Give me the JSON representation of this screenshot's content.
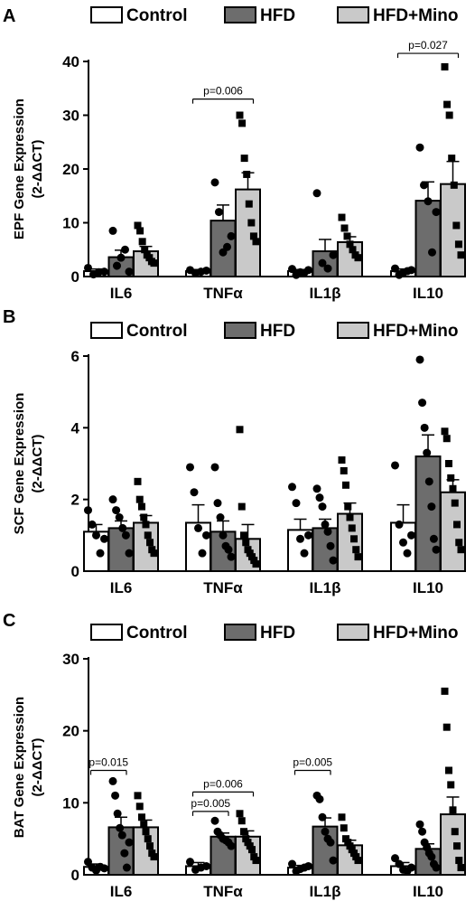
{
  "colors": {
    "Control": "#ffffff",
    "HFD": "#6d6d6d",
    "HFD+Mino": "#c9c9c9",
    "stroke": "#000000"
  },
  "chart_data": [
    {
      "type": "bar",
      "panel": "A",
      "ylabel_lines": [
        "EPF Gene Expression",
        "(2-ΔΔCT)"
      ],
      "ylim": [
        0,
        40
      ],
      "yticks": [
        0,
        10,
        20,
        30,
        40
      ],
      "categories": [
        "IL6",
        "TNFα",
        "IL1β",
        "IL10"
      ],
      "legend": [
        "Control",
        "HFD",
        "HFD+Mino"
      ],
      "series": [
        {
          "name": "Control",
          "marker": "circle",
          "values": [
            1.0,
            1.0,
            1.0,
            1.0
          ],
          "errors": [
            0.4,
            0.3,
            0.3,
            0.4
          ],
          "points": [
            [
              1.6,
              0.4,
              0.8,
              0.9
            ],
            [
              1.2,
              0.6,
              0.9,
              1.1
            ],
            [
              1.4,
              0.3,
              0.8,
              0.7,
              1.2
            ],
            [
              1.5,
              0.3,
              0.7,
              1.0,
              1.2
            ]
          ]
        },
        {
          "name": "HFD",
          "marker": "circle",
          "values": [
            3.6,
            10.4,
            4.7,
            14.1
          ],
          "errors": [
            1.3,
            2.9,
            2.2,
            3.5
          ],
          "points": [
            [
              8.5,
              2.0,
              3.5,
              5.0,
              0.9
            ],
            [
              17.5,
              12.0,
              4.5,
              5.5,
              7.5
            ],
            [
              15.5,
              2.5,
              1.5,
              4.0
            ],
            [
              24.0,
              17.0,
              14.0,
              4.5,
              12.0
            ]
          ]
        },
        {
          "name": "HFD+Mino",
          "marker": "square",
          "values": [
            4.7,
            16.2,
            6.4,
            17.2
          ],
          "errors": [
            0.9,
            3.1,
            1.0,
            4.2
          ],
          "points": [
            [
              9.5,
              8.5,
              6.5,
              5.0,
              4.0,
              3.5,
              2.8,
              2.5
            ],
            [
              30.0,
              28.5,
              22.0,
              19.0,
              13.5,
              10.0,
              7.5,
              6.5
            ],
            [
              11.0,
              9.0,
              7.5,
              6.0,
              5.0,
              4.0,
              3.5
            ],
            [
              39.0,
              32.0,
              30.0,
              22.0,
              17.0,
              9.5,
              6.0,
              4.0
            ]
          ]
        }
      ],
      "annotations": [
        {
          "text": "p=0.006",
          "category": 1,
          "from": "Control",
          "to": "HFD+Mino",
          "y": 33
        },
        {
          "text": "p=0.027",
          "category": 3,
          "from": "Control",
          "to": "HFD+Mino",
          "y": 41.5
        }
      ]
    },
    {
      "type": "bar",
      "panel": "B",
      "ylabel_lines": [
        "SCF Gene Expression",
        "(2-ΔΔCT)"
      ],
      "ylim": [
        0,
        6
      ],
      "yticks": [
        0,
        2,
        4,
        6
      ],
      "categories": [
        "IL6",
        "TNFα",
        "IL1β",
        "IL10"
      ],
      "legend": [
        "Control",
        "HFD",
        "HFD+Mino"
      ],
      "series": [
        {
          "name": "Control",
          "marker": "circle",
          "values": [
            1.1,
            1.35,
            1.15,
            1.35
          ],
          "errors": [
            0.2,
            0.5,
            0.3,
            0.5
          ],
          "points": [
            [
              1.7,
              1.3,
              1.0,
              0.5,
              0.9
            ],
            [
              2.9,
              2.2,
              1.2,
              0.5,
              1.0
            ],
            [
              2.35,
              1.9,
              0.9,
              0.5,
              1.0
            ],
            [
              2.95,
              1.3,
              0.8,
              0.5,
              1.0
            ]
          ]
        },
        {
          "name": "HFD",
          "marker": "circle",
          "values": [
            1.2,
            1.1,
            1.2,
            3.2
          ],
          "errors": [
            0.2,
            0.3,
            0.25,
            0.6
          ],
          "points": [
            [
              2.0,
              1.7,
              1.5,
              1.2,
              1.0,
              0.5
            ],
            [
              2.9,
              1.9,
              1.5,
              1.0,
              0.7,
              0.6,
              0.4
            ],
            [
              2.3,
              2.05,
              1.8,
              1.3,
              1.1,
              0.7,
              0.3
            ],
            [
              5.9,
              4.7,
              4.0,
              3.3,
              2.5,
              1.8,
              0.9,
              0.6
            ]
          ]
        },
        {
          "name": "HFD+Mino",
          "marker": "square",
          "values": [
            1.35,
            0.9,
            1.6,
            2.2
          ],
          "errors": [
            0.2,
            0.4,
            0.3,
            0.35
          ],
          "points": [
            [
              2.5,
              2.0,
              1.8,
              1.5,
              1.3,
              1.0,
              0.8,
              0.6,
              0.5
            ],
            [
              3.95,
              1.8,
              1.0,
              0.8,
              0.6,
              0.5,
              0.4,
              0.3,
              0.2
            ],
            [
              3.1,
              2.8,
              2.4,
              1.8,
              1.5,
              1.2,
              0.9,
              0.6,
              0.4
            ],
            [
              3.9,
              3.7,
              3.0,
              2.6,
              2.3,
              1.9,
              1.3,
              0.8,
              0.6
            ]
          ]
        }
      ],
      "annotations": []
    },
    {
      "type": "bar",
      "panel": "C",
      "ylabel_lines": [
        "BAT Gene Expression",
        "(2-ΔΔCT)"
      ],
      "ylim": [
        0,
        30
      ],
      "yticks": [
        0,
        10,
        20,
        30
      ],
      "categories": [
        "IL6",
        "TNFα",
        "IL1β",
        "IL10"
      ],
      "legend": [
        "Control",
        "HFD",
        "HFD+Mino"
      ],
      "series": [
        {
          "name": "Control",
          "marker": "circle",
          "values": [
            1.1,
            1.2,
            1.0,
            1.2
          ],
          "errors": [
            0.4,
            0.5,
            0.3,
            0.5
          ],
          "points": [
            [
              1.8,
              1.0,
              0.6,
              1.1,
              0.9
            ],
            [
              1.8,
              0.7,
              1.0,
              1.2
            ],
            [
              1.5,
              0.5,
              0.8,
              1.0,
              1.2
            ],
            [
              2.3,
              1.5,
              0.7,
              0.5,
              1.0
            ]
          ]
        },
        {
          "name": "HFD",
          "marker": "circle",
          "values": [
            6.6,
            5.3,
            6.7,
            3.6
          ],
          "errors": [
            1.4,
            0.5,
            1.2,
            0.7
          ],
          "points": [
            [
              13.0,
              11.0,
              8.5,
              6.5,
              5.5,
              3.0,
              1.0,
              4.5
            ],
            [
              7.5,
              6.0,
              5.5,
              5.0,
              4.8,
              4.5,
              4.0
            ],
            [
              11.0,
              10.5,
              8.0,
              6.0,
              5.0,
              4.5,
              2.0
            ],
            [
              7.0,
              6.0,
              4.5,
              3.8,
              3.0,
              2.5,
              1.5,
              1.0
            ]
          ]
        },
        {
          "name": "HFD+Mino",
          "marker": "square",
          "values": [
            6.6,
            5.3,
            4.1,
            8.4
          ],
          "errors": [
            1.0,
            0.8,
            0.7,
            2.4
          ],
          "points": [
            [
              11.0,
              9.5,
              8.0,
              7.0,
              6.0,
              5.0,
              4.0,
              3.0,
              2.5
            ],
            [
              8.5,
              7.5,
              6.0,
              5.0,
              4.5,
              4.0,
              3.5,
              2.5,
              2.0
            ],
            [
              8.0,
              6.5,
              5.0,
              4.5,
              4.0,
              3.5,
              3.0,
              2.5,
              2.0
            ],
            [
              25.5,
              20.5,
              14.5,
              12.5,
              9.0,
              6.0,
              4.0,
              2.0,
              1.0
            ]
          ]
        }
      ],
      "annotations": [
        {
          "text": "p=0.015",
          "category": 0,
          "from": "Control",
          "to": "HFD",
          "y": 14.5
        },
        {
          "text": "p=0.006",
          "category": 1,
          "from": "Control",
          "to": "HFD+Mino",
          "y": 11.5
        },
        {
          "text": "p=0.005",
          "category": 1,
          "from": "Control",
          "to": "HFD",
          "y": 8.8
        },
        {
          "text": "p=0.005",
          "category": 2,
          "from": "Control",
          "to": "HFD",
          "y": 14.5
        }
      ]
    }
  ]
}
